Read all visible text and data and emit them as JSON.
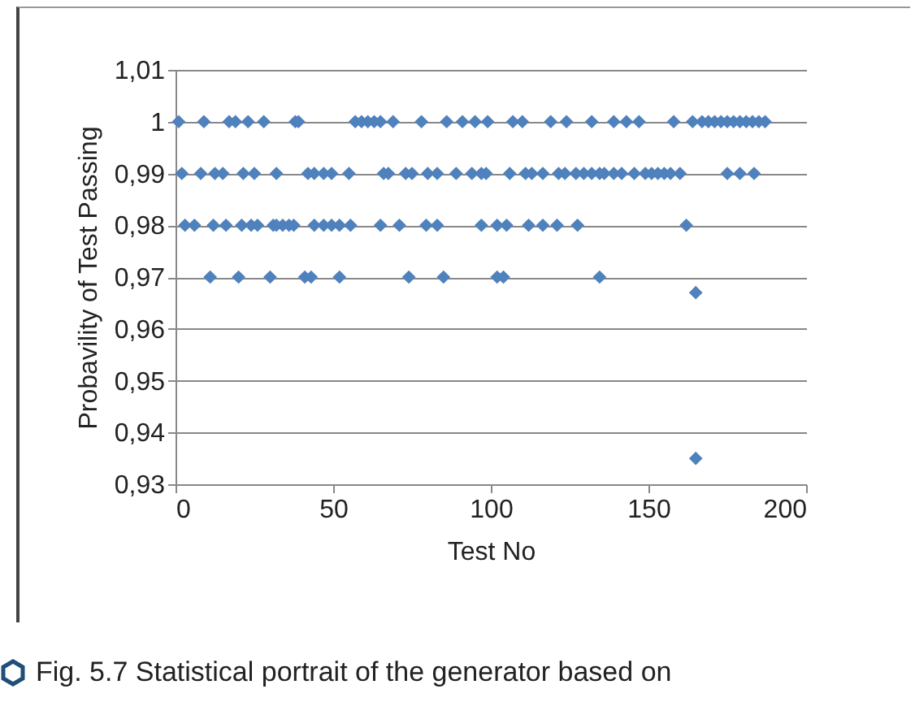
{
  "chart_data": {
    "type": "scatter",
    "xlabel": "Test No",
    "ylabel": "Probavility of Test Passing",
    "annotations": [
      "Fig. 5.7 Statistical portrait of the generator based on"
    ],
    "series": [
      {
        "color": "#4f81bd",
        "x": [
          1,
          9,
          17,
          19,
          23,
          28,
          38,
          39,
          57,
          59,
          61,
          63,
          65,
          69,
          78,
          86,
          91,
          95,
          99,
          107,
          110,
          119,
          124,
          132,
          139,
          143,
          147,
          158,
          164,
          167,
          169,
          171,
          173,
          175,
          177,
          179,
          181,
          183,
          185,
          187,
          2,
          8,
          12.5,
          15,
          21.5,
          25,
          32,
          42,
          44,
          47,
          49.5,
          55,
          66,
          67.5,
          73,
          75,
          80,
          83,
          89,
          94,
          97,
          98.5,
          106,
          111,
          113,
          116.5,
          121.5,
          123.5,
          127,
          129.5,
          132,
          134.5,
          136,
          139,
          141.5,
          145.5,
          149,
          151,
          153,
          155,
          157,
          160,
          175,
          179,
          183.5,
          3,
          6,
          12,
          16,
          21,
          24,
          26,
          31,
          32,
          34,
          36,
          37.5,
          44,
          47,
          49.5,
          52,
          55.5,
          65,
          71,
          79.5,
          83,
          97,
          102,
          105,
          112,
          116.5,
          121,
          127.5,
          162,
          11,
          20,
          30,
          41,
          43,
          52,
          74,
          85,
          102,
          104,
          134.5,
          165,
          165
        ],
        "values": [
          1,
          1,
          1,
          1,
          1,
          1,
          1,
          1,
          1,
          1,
          1,
          1,
          1,
          1,
          1,
          1,
          1,
          1,
          1,
          1,
          1,
          1,
          1,
          1,
          1,
          1,
          1,
          1,
          1,
          1,
          1,
          1,
          1,
          1,
          1,
          1,
          1,
          1,
          1,
          1,
          0.99,
          0.99,
          0.99,
          0.99,
          0.99,
          0.99,
          0.99,
          0.99,
          0.99,
          0.99,
          0.99,
          0.99,
          0.99,
          0.99,
          0.99,
          0.99,
          0.99,
          0.99,
          0.99,
          0.99,
          0.99,
          0.99,
          0.99,
          0.99,
          0.99,
          0.99,
          0.99,
          0.99,
          0.99,
          0.99,
          0.99,
          0.99,
          0.99,
          0.99,
          0.99,
          0.99,
          0.99,
          0.99,
          0.99,
          0.99,
          0.99,
          0.99,
          0.99,
          0.99,
          0.99,
          0.98,
          0.98,
          0.98,
          0.98,
          0.98,
          0.98,
          0.98,
          0.98,
          0.98,
          0.98,
          0.98,
          0.98,
          0.98,
          0.98,
          0.98,
          0.98,
          0.98,
          0.98,
          0.98,
          0.98,
          0.98,
          0.98,
          0.98,
          0.98,
          0.98,
          0.98,
          0.98,
          0.98,
          0.98,
          0.97,
          0.97,
          0.97,
          0.97,
          0.97,
          0.97,
          0.97,
          0.97,
          0.97,
          0.97,
          0.97,
          0.967,
          0.935
        ]
      }
    ],
    "xlim": [
      0,
      200
    ],
    "xticks": [
      0,
      50,
      100,
      150,
      200
    ],
    "ylim": [
      0.93,
      1.01
    ],
    "yticks": [
      {
        "value": 0.93,
        "label": "0,93"
      },
      {
        "value": 0.94,
        "label": "0,94"
      },
      {
        "value": 0.95,
        "label": "0,95"
      },
      {
        "value": 0.96,
        "label": "0,96"
      },
      {
        "value": 0.97,
        "label": "0,97"
      },
      {
        "value": 0.98,
        "label": "0,98"
      },
      {
        "value": 0.99,
        "label": "0,99"
      },
      {
        "value": 1,
        "label": "1"
      },
      {
        "value": 1.01,
        "label": "1,01"
      }
    ],
    "grid": "y",
    "marker": "diamond",
    "legend": false
  }
}
